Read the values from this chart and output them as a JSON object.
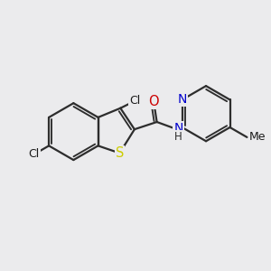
{
  "background_color": "#ebebed",
  "bond_color": "#2d2d2d",
  "bond_width": 1.6,
  "figsize": [
    3.0,
    3.0
  ],
  "dpi": 100,
  "xlim": [
    0,
    10
  ],
  "ylim": [
    0,
    10
  ],
  "S_color": "#cccc00",
  "N_color": "#0000cc",
  "O_color": "#cc0000",
  "Cl_color": "#1a1a1a",
  "C_color": "#1a1a1a"
}
